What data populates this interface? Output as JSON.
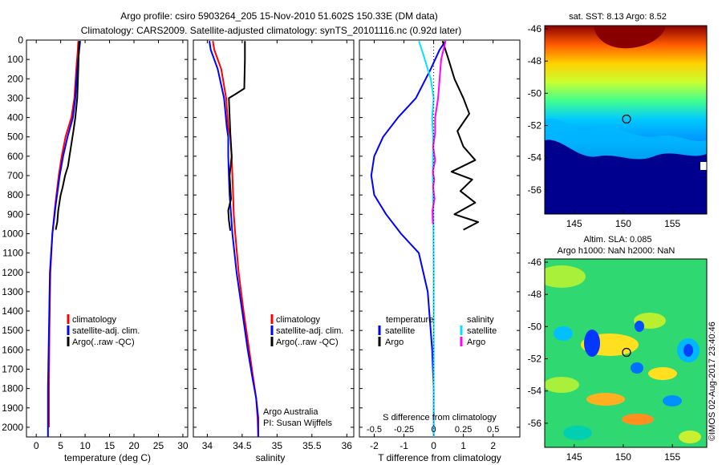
{
  "header": {
    "line1": "Argo profile: csiro 5903264_205 15-Nov-2010 51.602S 150.33E (DM data)",
    "line2": "Climatology: CARS2009. Satellite-adjusted climatology: synTS_20101116.nc (0.92d later)"
  },
  "colors": {
    "climatology": "#ff0000",
    "satellite": "#0000ff",
    "argo": "#000000",
    "sat_salinity": "#00e5ff",
    "argo_salinity": "#ff00ff"
  },
  "chart_data": [
    {
      "type": "line",
      "xlabel": "temperature (deg C)",
      "xticks": [
        "0",
        "5",
        "10",
        "15",
        "20",
        "25",
        "30"
      ],
      "xlim": [
        -2,
        31
      ],
      "ylim": [
        2050,
        0
      ],
      "yticks": [
        "0",
        "100",
        "200",
        "300",
        "400",
        "500",
        "600",
        "700",
        "800",
        "900",
        "1000",
        "1100",
        "1200",
        "1300",
        "1400",
        "1500",
        "1600",
        "1700",
        "1800",
        "1900",
        "2000"
      ],
      "legend": [
        "climatology",
        "satellite-adj. clim.",
        "Argo(..raw -QC)"
      ],
      "series": [
        {
          "name": "climatology",
          "color": "#ff0000",
          "x": [
            8.6,
            8.5,
            8.2,
            7.8,
            7.2,
            6.0,
            5.2,
            4.6,
            3.9,
            3.3,
            2.9,
            2.7,
            2.6,
            2.6
          ],
          "y": [
            5,
            50,
            150,
            300,
            400,
            500,
            600,
            700,
            850,
            1000,
            1200,
            1500,
            1800,
            2000
          ]
        },
        {
          "name": "satellite-adj. clim.",
          "color": "#0000ff",
          "x": [
            9.0,
            8.8,
            8.4,
            8.0,
            7.5,
            6.4,
            5.5,
            4.8,
            4.0,
            3.3,
            2.8,
            2.6,
            2.4,
            2.4
          ],
          "y": [
            5,
            50,
            150,
            300,
            400,
            500,
            600,
            700,
            850,
            1000,
            1200,
            1500,
            1800,
            2050
          ]
        },
        {
          "name": "Argo(..raw -QC)",
          "color": "#000000",
          "x": [
            8.8,
            8.7,
            8.6,
            8.4,
            8.0,
            7.6,
            7.3,
            6.8,
            6.5,
            5.9,
            5.4,
            5.0,
            4.5,
            4.3,
            4.0
          ],
          "y": [
            5,
            50,
            150,
            300,
            400,
            470,
            520,
            600,
            650,
            700,
            760,
            800,
            880,
            940,
            980
          ]
        }
      ]
    },
    {
      "type": "line",
      "xlabel": "salinity",
      "xticks": [
        "34",
        "34.5",
        "35",
        "35.5",
        "36"
      ],
      "xlim": [
        33.8,
        36.1
      ],
      "ylim": [
        2050,
        0
      ],
      "legend": [
        "climatology",
        "satellite-adj. clim.",
        "Argo(..raw -QC)"
      ],
      "annotation": [
        "Argo Australia",
        "PI: Susan Wijffels"
      ],
      "series": [
        {
          "name": "climatology",
          "color": "#ff0000",
          "x": [
            34.08,
            34.1,
            34.2,
            34.27,
            34.3,
            34.33,
            34.35,
            34.36,
            34.37,
            34.38,
            34.4,
            34.45,
            34.52,
            34.6,
            34.66,
            34.7,
            34.72,
            34.73
          ],
          "y": [
            5,
            50,
            150,
            300,
            450,
            500,
            600,
            700,
            800,
            900,
            1000,
            1200,
            1400,
            1600,
            1750,
            1850,
            1950,
            2050
          ]
        },
        {
          "name": "satellite-adj. clim.",
          "color": "#0000ff",
          "x": [
            34.03,
            34.05,
            34.15,
            34.24,
            34.28,
            34.3,
            34.3,
            34.31,
            34.32,
            34.34,
            34.36,
            34.42,
            34.5,
            34.58,
            34.65,
            34.7,
            34.73,
            34.73
          ],
          "y": [
            5,
            50,
            150,
            300,
            450,
            500,
            600,
            700,
            800,
            900,
            1000,
            1200,
            1400,
            1600,
            1750,
            1850,
            1950,
            2050
          ]
        },
        {
          "name": "Argo(..raw -QC)",
          "color": "#000000",
          "x": [
            34.54,
            34.54,
            34.53,
            34.4,
            34.31,
            34.33,
            34.35,
            34.32,
            34.33,
            34.34,
            34.3,
            34.31,
            34.33
          ],
          "y": [
            5,
            100,
            250,
            280,
            300,
            480,
            600,
            700,
            760,
            820,
            880,
            930,
            985
          ]
        }
      ]
    },
    {
      "type": "line",
      "xlabel": "T difference from climatology",
      "xticks": [
        "-2",
        "-1",
        "0",
        "1",
        "2"
      ],
      "xlim": [
        -2.5,
        2.9
      ],
      "x2label": "S difference from climatology",
      "x2ticks": [
        "-0.5",
        "-0.25",
        "0",
        "0.25",
        "0.5"
      ],
      "ylim": [
        2050,
        0
      ],
      "legend_headers": [
        "temperature",
        "salinity"
      ],
      "legend": [
        "satellite",
        "Argo",
        "satellite",
        "Argo"
      ],
      "series": [
        {
          "name": "satellite",
          "color": "#0000ff",
          "x": [
            0.4,
            0.2,
            -0.1,
            -0.6,
            -1.2,
            -1.7,
            -2.0,
            -2.1,
            -2.0,
            -1.6,
            -1.1,
            -0.5,
            -0.2,
            -0.05,
            0.0,
            0.0
          ],
          "y": [
            5,
            50,
            150,
            300,
            400,
            500,
            600,
            700,
            800,
            900,
            1000,
            1100,
            1300,
            1600,
            1800,
            2050
          ]
        },
        {
          "name": "Argo",
          "color": "#000000",
          "x": [
            0.3,
            0.5,
            0.7,
            1.0,
            1.2,
            0.8,
            1.0,
            1.4,
            0.6,
            1.3,
            0.9,
            1.4,
            0.7,
            1.5,
            1.0
          ],
          "y": [
            5,
            100,
            200,
            300,
            380,
            470,
            550,
            620,
            680,
            720,
            780,
            840,
            900,
            940,
            980
          ]
        },
        {
          "name": "satellite",
          "color": "#00e5ff",
          "x": [
            -0.5,
            -0.4,
            -0.3,
            -0.1,
            0.0,
            -0.05,
            -0.02,
            -0.03,
            -0.01,
            0.0,
            0.0,
            0.0,
            0.0
          ],
          "y": [
            5,
            50,
            100,
            200,
            300,
            400,
            500,
            700,
            900,
            1200,
            1500,
            1800,
            2050
          ]
        },
        {
          "name": "Argo",
          "color": "#ff00ff",
          "x": [
            0.4,
            0.25,
            0.2,
            0.15,
            0.05,
            0.05,
            -0.02,
            0.05,
            -0.03,
            0.02,
            -0.02,
            0.03,
            -0.04,
            -0.03
          ],
          "y": [
            5,
            100,
            200,
            300,
            400,
            480,
            550,
            620,
            680,
            720,
            760,
            820,
            880,
            950
          ]
        }
      ]
    },
    {
      "type": "heatmap",
      "title": "sat. SST: 8.13 Argo: 8.52",
      "xticks": [
        "145",
        "150",
        "155"
      ],
      "yticks": [
        "-46",
        "-48",
        "-50",
        "-52",
        "-54",
        "-56"
      ],
      "xlim": [
        142,
        158.5
      ],
      "ylim": [
        -57.5,
        -45.8
      ],
      "marker": {
        "lon": 150.33,
        "lat": -51.6
      }
    },
    {
      "type": "heatmap",
      "title": "Altim. SLA: 0.085",
      "subtitle": "Argo h1000: NaN h2000: NaN",
      "xticks": [
        "145",
        "150",
        "155"
      ],
      "yticks": [
        "-46",
        "-48",
        "-50",
        "-52",
        "-54",
        "-56"
      ],
      "xlim": [
        142,
        158.5
      ],
      "ylim": [
        -57.5,
        -45.8
      ],
      "marker": {
        "lon": 150.33,
        "lat": -51.6
      }
    }
  ],
  "credit": "©IMOS 02-Aug-2017 23:40:46"
}
